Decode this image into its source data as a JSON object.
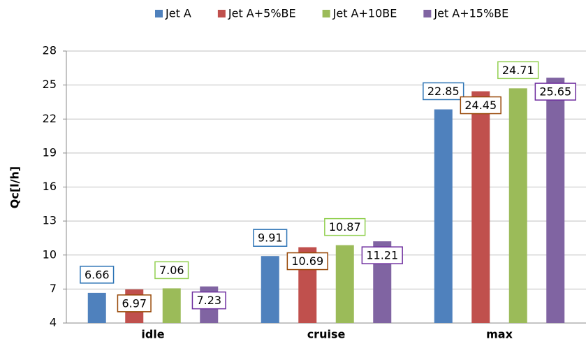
{
  "chart_data": {
    "type": "bar",
    "y_label": "Qc[l/h]",
    "categories": [
      "idle",
      "cruise",
      "max"
    ],
    "series": [
      {
        "name": "Jet A",
        "color": "#4f81bd",
        "label_color": "#2e75b6",
        "values": [
          6.66,
          9.91,
          22.85
        ]
      },
      {
        "name": "Jet A+5%BE",
        "color": "#c0504d",
        "label_color": "#984807",
        "values": [
          6.97,
          10.69,
          24.45
        ]
      },
      {
        "name": "Jet A+10BE",
        "color": "#9bbb59",
        "label_color": "#92d050",
        "values": [
          7.06,
          10.87,
          24.71
        ]
      },
      {
        "name": "Jet A+15%BE",
        "color": "#8064a2",
        "label_color": "#7030a0",
        "values": [
          7.23,
          11.21,
          25.65
        ]
      }
    ],
    "ylim": [
      4,
      28
    ],
    "yticks": [
      4,
      7,
      10,
      13,
      16,
      19,
      22,
      25,
      28
    ],
    "grid": true,
    "legend": "top"
  }
}
